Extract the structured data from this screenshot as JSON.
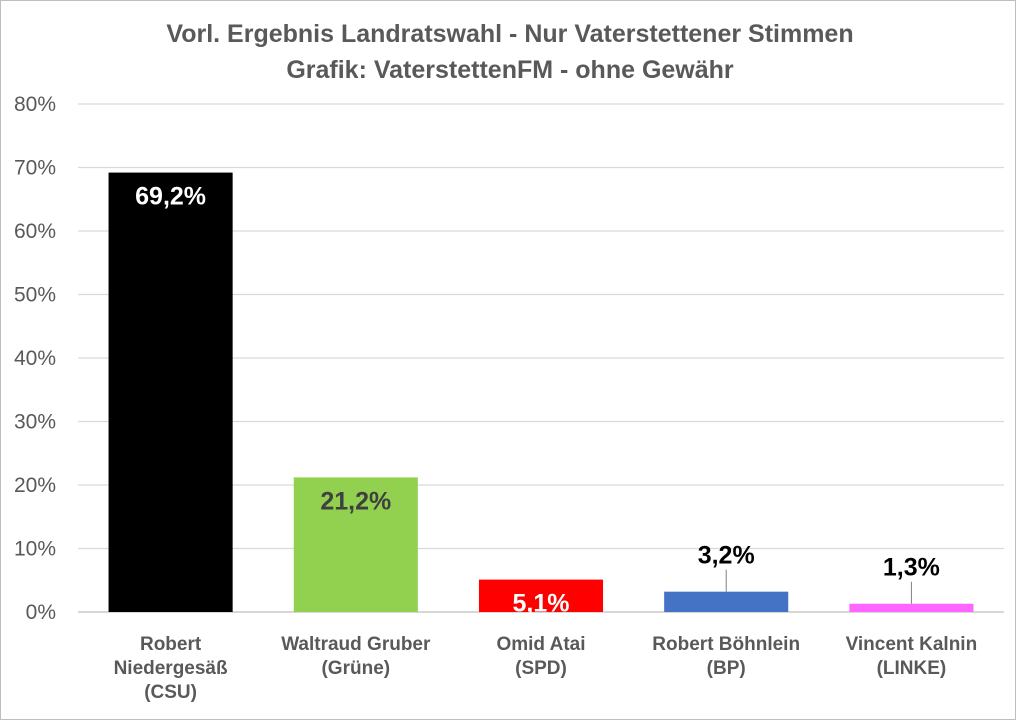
{
  "chart_data": {
    "type": "bar",
    "title": "Vorl. Ergebnis Landratswahl -  Nur Vaterstettener Stimmen",
    "subtitle": "Grafik: VaterstettenFM - ohne Gewähr",
    "categories": [
      [
        "Robert",
        "Niedergesäß",
        "(CSU)"
      ],
      [
        "Waltraud Gruber",
        "(Grüne)"
      ],
      [
        "Omid Atai",
        "(SPD)"
      ],
      [
        "Robert Böhnlein",
        "(BP)"
      ],
      [
        "Vincent Kalnin",
        "(LINKE)"
      ]
    ],
    "values": [
      69.2,
      21.2,
      5.1,
      3.2,
      1.3
    ],
    "data_labels": [
      "69,2%",
      "21,2%",
      "5,1%",
      "3,2%",
      "1,3%"
    ],
    "label_placement": [
      "inside",
      "inside",
      "inside",
      "above",
      "above"
    ],
    "label_colors": [
      "#ffffff",
      "#404040",
      "#ffffff",
      "#000000",
      "#000000"
    ],
    "bar_colors": [
      "#000000",
      "#92d050",
      "#ff0000",
      "#4472c4",
      "#ff66ff"
    ],
    "ylim": [
      0,
      80
    ],
    "y_ticks": [
      0,
      10,
      20,
      30,
      40,
      50,
      60,
      70,
      80
    ],
    "y_tick_labels": [
      "0%",
      "10%",
      "20%",
      "30%",
      "40%",
      "50%",
      "60%",
      "70%",
      "80%"
    ],
    "grid": true,
    "legend": "none",
    "xlabel": "",
    "ylabel": ""
  }
}
